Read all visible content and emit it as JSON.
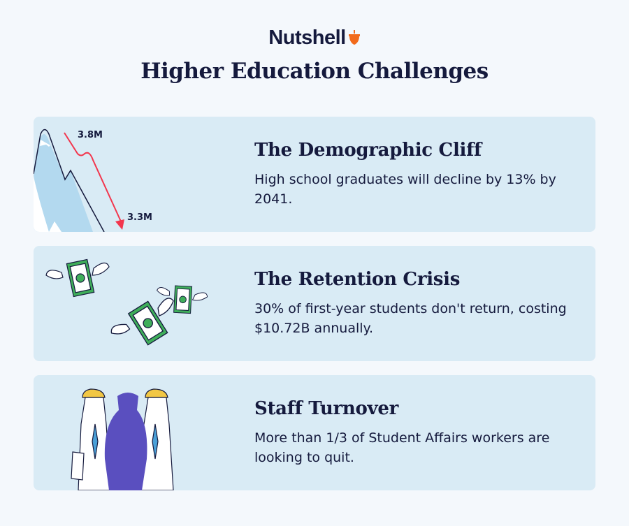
{
  "brand": {
    "name": "Nutshell",
    "accent": "#f26a1b",
    "icon": "acorn-icon"
  },
  "title": "Higher Education Challenges",
  "cards": [
    {
      "heading": "The Demographic Cliff",
      "text": "High school graduates will decline by 13% by 2041.",
      "labels": {
        "start": "3.8M",
        "end": "3.3M"
      },
      "icon": "mountain-cliff-arrow-icon"
    },
    {
      "heading": "The Retention Crisis",
      "text": "30% of first-year students don't return, costing $10.72B annually.",
      "icon": "flying-money-icon"
    },
    {
      "heading": "Staff Turnover",
      "text": "More than 1/3 of Student Affairs workers are looking to quit.",
      "icon": "staff-figures-icon"
    }
  ],
  "colors": {
    "background": "#f4f8fc",
    "card": "#d9ebf5",
    "text": "#151a3d",
    "arrow": "#f2364d",
    "money": "#3fae5a",
    "figure": "#5a4fbf"
  }
}
